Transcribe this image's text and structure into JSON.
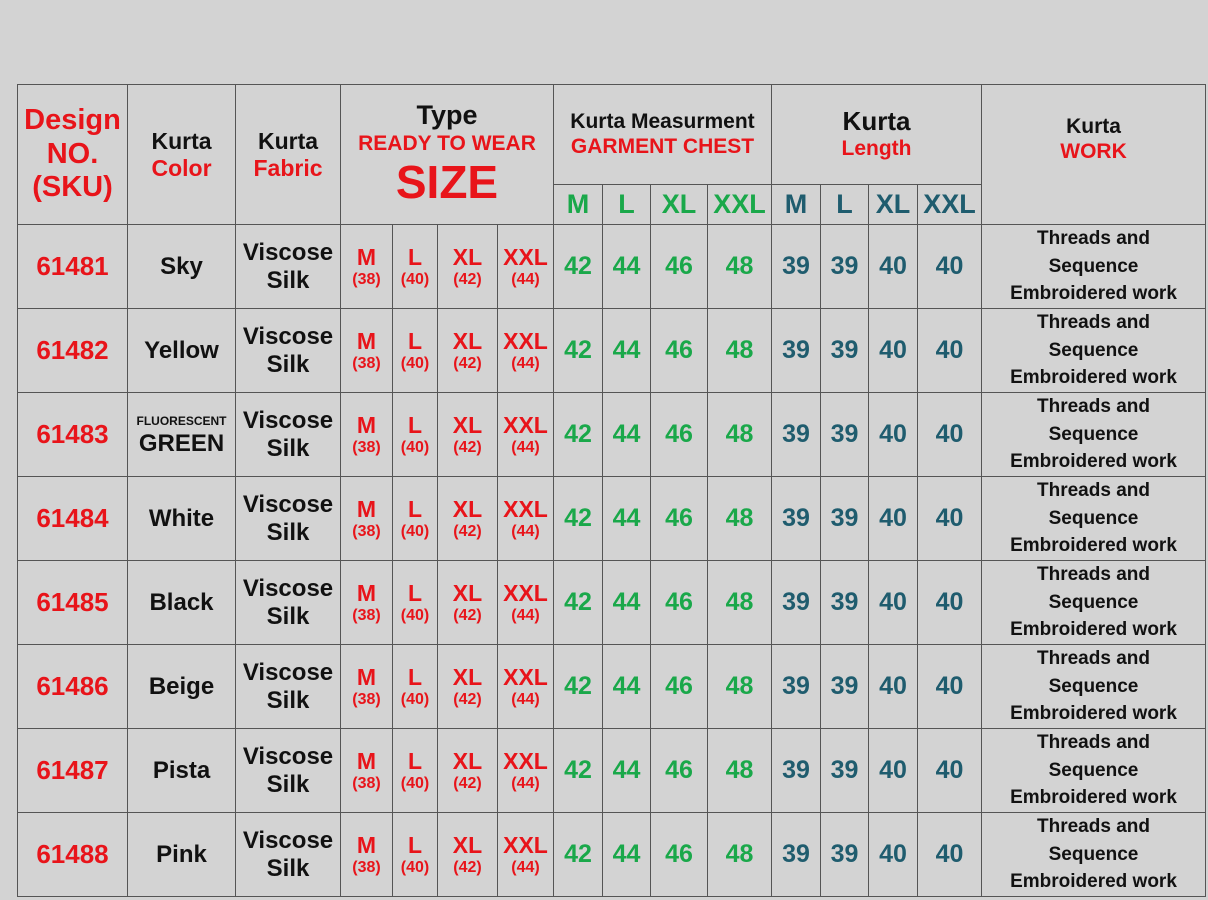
{
  "header": {
    "design": [
      "Design",
      "NO.",
      "(SKU)"
    ],
    "color": [
      "Kurta",
      "Color"
    ],
    "fabric": [
      "Kurta",
      "Fabric"
    ],
    "type": [
      "Type",
      "READY TO WEAR",
      "SIZE"
    ],
    "measure": [
      "Kurta Measurment",
      "GARMENT CHEST"
    ],
    "length": [
      "Kurta",
      "Length"
    ],
    "work": [
      "Kurta",
      "WORK"
    ],
    "sizes": [
      "M",
      "L",
      "XL",
      "XXL"
    ]
  },
  "size_labels": [
    [
      "M",
      "(38)"
    ],
    [
      "L",
      "(40)"
    ],
    [
      "XL",
      "(42)"
    ],
    [
      "XXL",
      "(44)"
    ]
  ],
  "colors_hex": {
    "red": "#e8141a",
    "green": "#1aa84a",
    "teal": "#1f5c6e"
  },
  "rows": [
    {
      "sku": "61481",
      "color": "Sky",
      "fabric": [
        "Viscose",
        "Silk"
      ],
      "chest": [
        "42",
        "44",
        "46",
        "48"
      ],
      "length": [
        "39",
        "39",
        "40",
        "40"
      ],
      "work": [
        "Threads and",
        "Sequence",
        "Embroidered work"
      ]
    },
    {
      "sku": "61482",
      "color": "Yellow",
      "fabric": [
        "Viscose",
        "Silk"
      ],
      "chest": [
        "42",
        "44",
        "46",
        "48"
      ],
      "length": [
        "39",
        "39",
        "40",
        "40"
      ],
      "work": [
        "Threads and",
        "Sequence",
        "Embroidered work"
      ]
    },
    {
      "sku": "61483",
      "color_small": "FLUORESCENT",
      "color": "GREEN",
      "fabric": [
        "Viscose",
        "Silk"
      ],
      "chest": [
        "42",
        "44",
        "46",
        "48"
      ],
      "length": [
        "39",
        "39",
        "40",
        "40"
      ],
      "work": [
        "Threads and",
        "Sequence",
        "Embroidered work"
      ]
    },
    {
      "sku": "61484",
      "color": "White",
      "fabric": [
        "Viscose",
        "Silk"
      ],
      "chest": [
        "42",
        "44",
        "46",
        "48"
      ],
      "length": [
        "39",
        "39",
        "40",
        "40"
      ],
      "work": [
        "Threads and",
        "Sequence",
        "Embroidered work"
      ]
    },
    {
      "sku": "61485",
      "color": "Black",
      "fabric": [
        "Viscose",
        "Silk"
      ],
      "chest": [
        "42",
        "44",
        "46",
        "48"
      ],
      "length": [
        "39",
        "39",
        "40",
        "40"
      ],
      "work": [
        "Threads and",
        "Sequence",
        "Embroidered work"
      ]
    },
    {
      "sku": "61486",
      "color": "Beige",
      "fabric": [
        "Viscose",
        "Silk"
      ],
      "chest": [
        "42",
        "44",
        "46",
        "48"
      ],
      "length": [
        "39",
        "39",
        "40",
        "40"
      ],
      "work": [
        "Threads and",
        "Sequence",
        "Embroidered work"
      ]
    },
    {
      "sku": "61487",
      "color": "Pista",
      "fabric": [
        "Viscose",
        "Silk"
      ],
      "chest": [
        "42",
        "44",
        "46",
        "48"
      ],
      "length": [
        "39",
        "39",
        "40",
        "40"
      ],
      "work": [
        "Threads and",
        "Sequence",
        "Embroidered work"
      ]
    },
    {
      "sku": "61488",
      "color": "Pink",
      "fabric": [
        "Viscose",
        "Silk"
      ],
      "chest": [
        "42",
        "44",
        "46",
        "48"
      ],
      "length": [
        "39",
        "39",
        "40",
        "40"
      ],
      "work": [
        "Threads and",
        "Sequence",
        "Embroidered work"
      ]
    }
  ]
}
